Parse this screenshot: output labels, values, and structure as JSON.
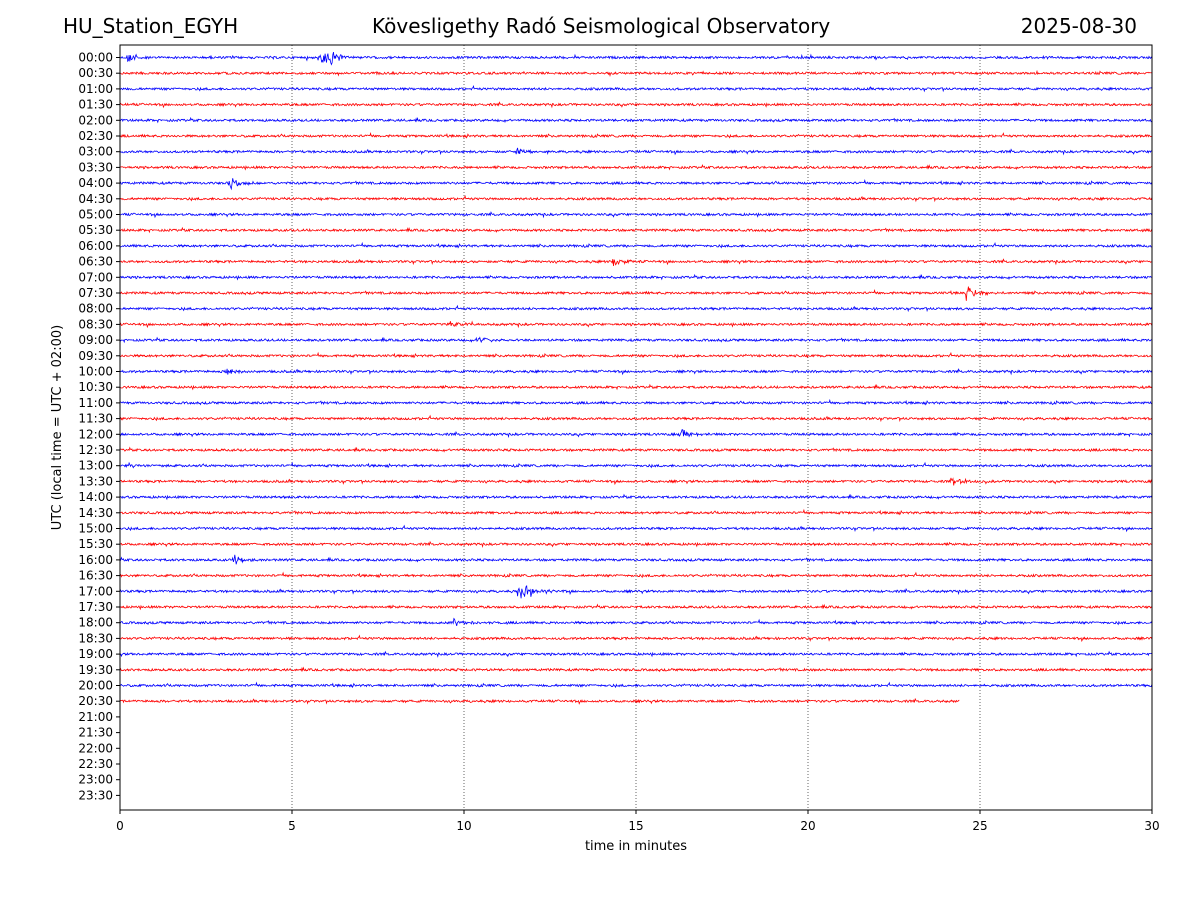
{
  "header": {
    "station": "HU_Station_EGYH",
    "observatory": "Kövesligethy Radó Seismological Observatory",
    "date": "2025-08-30"
  },
  "chart_data": {
    "type": "line",
    "title": "Kövesligethy Radó Seismological Observatory",
    "xlabel": "time in minutes",
    "ylabel": "UTC (local time = UTC + 02:00)",
    "xlim": [
      0,
      30
    ],
    "xticks": [
      0,
      5,
      10,
      15,
      20,
      25,
      30
    ],
    "grid": "vertical dotted at x ticks",
    "row_labels": [
      "00:00",
      "00:30",
      "01:00",
      "01:30",
      "02:00",
      "02:30",
      "03:00",
      "03:30",
      "04:00",
      "04:30",
      "05:00",
      "05:30",
      "06:00",
      "06:30",
      "07:00",
      "07:30",
      "08:00",
      "08:30",
      "09:00",
      "09:30",
      "10:00",
      "10:30",
      "11:00",
      "11:30",
      "12:00",
      "12:30",
      "13:00",
      "13:30",
      "14:00",
      "14:30",
      "15:00",
      "15:30",
      "16:00",
      "16:30",
      "17:00",
      "17:30",
      "18:00",
      "18:30",
      "19:00",
      "19:30",
      "20:00",
      "20:30",
      "21:00",
      "21:30",
      "22:00",
      "22:30",
      "23:00",
      "23:30"
    ],
    "colors": {
      "hour_trace": "#0000ff",
      "half_hour_trace": "#ff0000"
    },
    "traces": [
      {
        "row": "00:00",
        "end": 30,
        "events": [
          {
            "t": 0.2,
            "amp": 0.5
          },
          {
            "t": 5.8,
            "amp": 0.9
          },
          {
            "t": 6.1,
            "amp": 0.6
          }
        ]
      },
      {
        "row": "00:30",
        "end": 30,
        "events": []
      },
      {
        "row": "01:00",
        "end": 30,
        "events": []
      },
      {
        "row": "01:30",
        "end": 30,
        "events": []
      },
      {
        "row": "02:00",
        "end": 30,
        "events": []
      },
      {
        "row": "02:30",
        "end": 30,
        "events": []
      },
      {
        "row": "03:00",
        "end": 30,
        "events": [
          {
            "t": 11.5,
            "amp": 0.3
          }
        ]
      },
      {
        "row": "03:30",
        "end": 30,
        "events": []
      },
      {
        "row": "04:00",
        "end": 30,
        "events": [
          {
            "t": 3.2,
            "amp": 0.5
          }
        ]
      },
      {
        "row": "04:30",
        "end": 30,
        "events": []
      },
      {
        "row": "05:00",
        "end": 30,
        "events": []
      },
      {
        "row": "05:30",
        "end": 30,
        "events": []
      },
      {
        "row": "06:00",
        "end": 30,
        "events": []
      },
      {
        "row": "06:30",
        "end": 30,
        "events": [
          {
            "t": 14.3,
            "amp": 0.4
          }
        ]
      },
      {
        "row": "07:00",
        "end": 30,
        "events": []
      },
      {
        "row": "07:30",
        "end": 30,
        "events": [
          {
            "t": 24.6,
            "amp": 0.7
          }
        ]
      },
      {
        "row": "08:00",
        "end": 30,
        "events": []
      },
      {
        "row": "08:30",
        "end": 30,
        "events": [
          {
            "t": 9.6,
            "amp": 0.3
          }
        ]
      },
      {
        "row": "09:00",
        "end": 30,
        "events": [
          {
            "t": 10.4,
            "amp": 0.3
          }
        ]
      },
      {
        "row": "09:30",
        "end": 30,
        "events": []
      },
      {
        "row": "10:00",
        "end": 30,
        "events": [
          {
            "t": 3.1,
            "amp": 0.4
          }
        ]
      },
      {
        "row": "10:30",
        "end": 30,
        "events": []
      },
      {
        "row": "11:00",
        "end": 30,
        "events": []
      },
      {
        "row": "11:30",
        "end": 30,
        "events": []
      },
      {
        "row": "12:00",
        "end": 30,
        "events": [
          {
            "t": 16.3,
            "amp": 0.5
          }
        ]
      },
      {
        "row": "12:30",
        "end": 30,
        "events": []
      },
      {
        "row": "13:00",
        "end": 30,
        "events": [
          {
            "t": 0.2,
            "amp": 0.3
          }
        ]
      },
      {
        "row": "13:30",
        "end": 30,
        "events": [
          {
            "t": 24.2,
            "amp": 0.4
          }
        ]
      },
      {
        "row": "14:00",
        "end": 30,
        "events": []
      },
      {
        "row": "14:30",
        "end": 30,
        "events": []
      },
      {
        "row": "15:00",
        "end": 30,
        "events": []
      },
      {
        "row": "15:30",
        "end": 30,
        "events": []
      },
      {
        "row": "16:00",
        "end": 30,
        "events": [
          {
            "t": 3.3,
            "amp": 0.5
          }
        ]
      },
      {
        "row": "16:30",
        "end": 30,
        "events": []
      },
      {
        "row": "17:00",
        "end": 30,
        "events": [
          {
            "t": 11.6,
            "amp": 1.2
          },
          {
            "t": 11.9,
            "amp": 0.4
          }
        ]
      },
      {
        "row": "17:30",
        "end": 30,
        "events": []
      },
      {
        "row": "18:00",
        "end": 30,
        "events": [
          {
            "t": 9.7,
            "amp": 0.4
          }
        ]
      },
      {
        "row": "18:30",
        "end": 30,
        "events": []
      },
      {
        "row": "19:00",
        "end": 30,
        "events": []
      },
      {
        "row": "19:30",
        "end": 30,
        "events": []
      },
      {
        "row": "20:00",
        "end": 30,
        "events": []
      },
      {
        "row": "20:30",
        "end": 24.4,
        "events": []
      }
    ]
  }
}
